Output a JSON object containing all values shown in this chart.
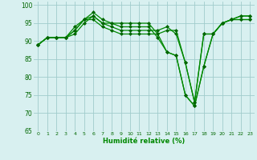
{
  "xlabel": "Humidité relative (%)",
  "background_color": "#d8f0f0",
  "grid_color": "#a0cccc",
  "line_color": "#008800",
  "marker_color": "#006600",
  "xlim": [
    -0.5,
    23.5
  ],
  "ylim": [
    65,
    101
  ],
  "yticks": [
    65,
    70,
    75,
    80,
    85,
    90,
    95,
    100
  ],
  "xticks": [
    0,
    1,
    2,
    3,
    4,
    5,
    6,
    7,
    8,
    9,
    10,
    11,
    12,
    13,
    14,
    15,
    16,
    17,
    18,
    19,
    20,
    21,
    22,
    23
  ],
  "series": [
    [
      89,
      91,
      91,
      91,
      92,
      95,
      97,
      95,
      95,
      95,
      95,
      95,
      95,
      92,
      87,
      86,
      75,
      72,
      83,
      92,
      95,
      96,
      97,
      97
    ],
    [
      89,
      91,
      91,
      91,
      93,
      96,
      98,
      96,
      95,
      94,
      94,
      94,
      94,
      91,
      87,
      86,
      75,
      72,
      83,
      92,
      95,
      96,
      97,
      97
    ],
    [
      89,
      91,
      91,
      91,
      93,
      96,
      97,
      95,
      94,
      93,
      93,
      93,
      93,
      93,
      94,
      92,
      84,
      73,
      92,
      92,
      95,
      96,
      96,
      96
    ],
    [
      89,
      91,
      91,
      91,
      94,
      96,
      96,
      94,
      93,
      92,
      92,
      92,
      92,
      92,
      93,
      93,
      84,
      73,
      92,
      92,
      95,
      96,
      96,
      96
    ]
  ]
}
